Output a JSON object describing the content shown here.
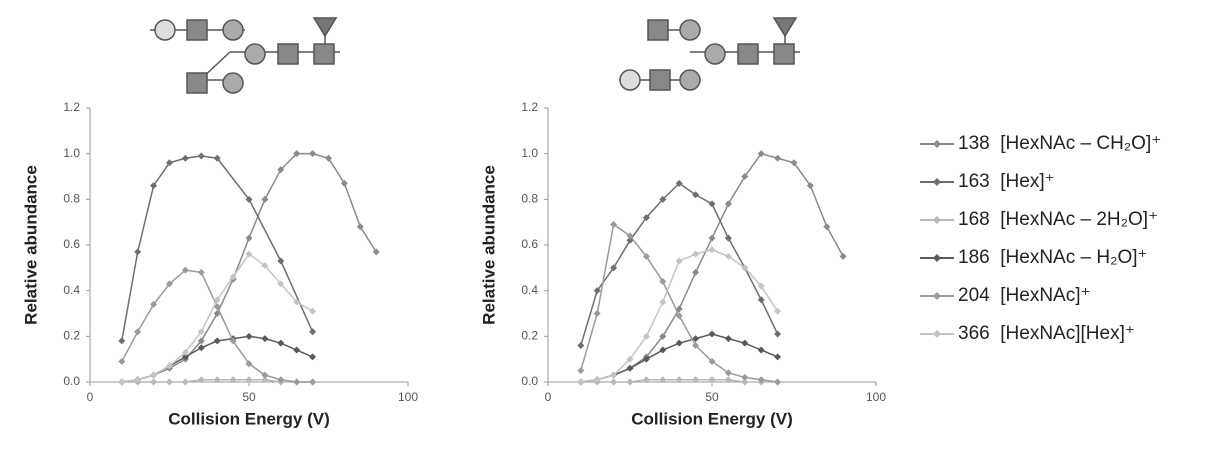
{
  "chart_data": [
    {
      "type": "line",
      "x_label": "Collision Energy (V)",
      "y_label": "Relative abundance",
      "xlim": [
        0,
        100
      ],
      "xticks": [
        0,
        50,
        100
      ],
      "ylim": [
        0,
        1.2
      ],
      "yticks": [
        {
          "value": 0,
          "label": "0.0"
        },
        {
          "value": 0.2,
          "label": "0.2"
        },
        {
          "value": 0.4,
          "label": "0.4"
        },
        {
          "value": 0.6,
          "label": "0.6"
        },
        {
          "value": 0.8,
          "label": "0.8"
        },
        {
          "value": 1.0,
          "label": "1.0"
        },
        {
          "value": 1.2,
          "label": "1.2"
        }
      ],
      "series": [
        {
          "name": "138  [HexNAc – CH₂O]⁺",
          "color": "#8a8a8a",
          "x": [
            10,
            15,
            20,
            25,
            30,
            35,
            40,
            45,
            50,
            55,
            60,
            65,
            70,
            75,
            80,
            85,
            90
          ],
          "values": [
            0,
            0.01,
            0.03,
            0.06,
            0.1,
            0.18,
            0.3,
            0.45,
            0.63,
            0.8,
            0.93,
            1.0,
            1.0,
            0.98,
            0.87,
            0.68,
            0.57
          ]
        },
        {
          "name": "163  [Hex]⁺",
          "color": "#6e6e6e",
          "x": [
            10,
            15,
            20,
            25,
            30,
            35,
            40,
            50,
            60,
            70
          ],
          "values": [
            0.18,
            0.57,
            0.86,
            0.96,
            0.98,
            0.99,
            0.98,
            0.8,
            0.53,
            0.22
          ]
        },
        {
          "name": "168  [HexNAc – 2H₂O]⁺",
          "color": "#b8b8b8",
          "x": [
            10,
            15,
            20,
            25,
            30,
            35,
            40,
            45,
            50,
            55,
            60,
            65,
            70
          ],
          "values": [
            0,
            0,
            0,
            0,
            0,
            0.01,
            0.01,
            0.01,
            0.01,
            0.01,
            0,
            0,
            0
          ]
        },
        {
          "name": "186  [HexNAc – H₂O]⁺",
          "color": "#5a5a5a",
          "x": [
            10,
            15,
            20,
            25,
            30,
            35,
            40,
            45,
            50,
            55,
            60,
            65,
            70
          ],
          "values": [
            0,
            0.01,
            0.03,
            0.07,
            0.11,
            0.15,
            0.18,
            0.19,
            0.2,
            0.19,
            0.17,
            0.14,
            0.11
          ]
        },
        {
          "name": "204  [HexNAc]⁺",
          "color": "#9a9a9a",
          "x": [
            10,
            15,
            20,
            25,
            30,
            35,
            40,
            45,
            50,
            55,
            60,
            65,
            70
          ],
          "values": [
            0.09,
            0.22,
            0.34,
            0.43,
            0.49,
            0.48,
            0.33,
            0.18,
            0.08,
            0.03,
            0.01,
            0,
            0
          ]
        },
        {
          "name": "366  [HexNAc][Hex]⁺",
          "color": "#c4c4c4",
          "x": [
            10,
            15,
            20,
            25,
            30,
            35,
            40,
            45,
            50,
            55,
            60,
            65,
            70
          ],
          "values": [
            0,
            0.01,
            0.03,
            0.07,
            0.13,
            0.22,
            0.36,
            0.46,
            0.56,
            0.51,
            0.43,
            0.35,
            0.31
          ]
        }
      ]
    },
    {
      "type": "line",
      "x_label": "Collision Energy (V)",
      "y_label": "Relative abundance",
      "xlim": [
        0,
        100
      ],
      "xticks": [
        0,
        50,
        100
      ],
      "ylim": [
        0,
        1.2
      ],
      "yticks": [
        {
          "value": 0,
          "label": "0.0"
        },
        {
          "value": 0.2,
          "label": "0.2"
        },
        {
          "value": 0.4,
          "label": "0.4"
        },
        {
          "value": 0.6,
          "label": "0.6"
        },
        {
          "value": 0.8,
          "label": "0.8"
        },
        {
          "value": 1.0,
          "label": "1.0"
        },
        {
          "value": 1.2,
          "label": "1.2"
        }
      ],
      "series": [
        {
          "color": "#8a8a8a",
          "x": [
            10,
            15,
            20,
            25,
            30,
            35,
            40,
            45,
            50,
            55,
            60,
            65,
            70,
            75,
            80,
            85,
            90
          ],
          "values": [
            0,
            0.01,
            0.03,
            0.06,
            0.11,
            0.2,
            0.32,
            0.48,
            0.63,
            0.78,
            0.9,
            1.0,
            0.98,
            0.96,
            0.86,
            0.68,
            0.55
          ]
        },
        {
          "color": "#6e6e6e",
          "x": [
            10,
            15,
            20,
            25,
            30,
            35,
            40,
            45,
            50,
            55,
            60,
            65,
            70
          ],
          "values": [
            0.16,
            0.4,
            0.5,
            0.62,
            0.72,
            0.8,
            0.87,
            0.82,
            0.78,
            0.63,
            0.5,
            0.36,
            0.21
          ]
        },
        {
          "color": "#b8b8b8",
          "x": [
            10,
            15,
            20,
            25,
            30,
            35,
            40,
            45,
            50,
            55,
            60,
            65,
            70
          ],
          "values": [
            0,
            0,
            0,
            0,
            0.01,
            0.01,
            0.01,
            0.01,
            0.01,
            0.01,
            0,
            0,
            0
          ]
        },
        {
          "color": "#5a5a5a",
          "x": [
            10,
            15,
            20,
            25,
            30,
            35,
            40,
            45,
            50,
            55,
            60,
            65,
            70
          ],
          "values": [
            0,
            0.01,
            0.03,
            0.06,
            0.1,
            0.14,
            0.17,
            0.19,
            0.21,
            0.19,
            0.17,
            0.14,
            0.11
          ]
        },
        {
          "color": "#9a9a9a",
          "x": [
            10,
            15,
            20,
            25,
            30,
            35,
            40,
            45,
            50,
            55,
            60,
            65,
            70
          ],
          "values": [
            0.05,
            0.3,
            0.69,
            0.64,
            0.55,
            0.44,
            0.29,
            0.16,
            0.09,
            0.04,
            0.02,
            0.01,
            0
          ]
        },
        {
          "color": "#c4c4c4",
          "x": [
            10,
            15,
            20,
            25,
            30,
            35,
            40,
            45,
            50,
            55,
            60,
            65,
            70
          ],
          "values": [
            0,
            0.01,
            0.03,
            0.1,
            0.2,
            0.35,
            0.53,
            0.56,
            0.58,
            0.55,
            0.5,
            0.42,
            0.31
          ]
        }
      ]
    }
  ]
}
